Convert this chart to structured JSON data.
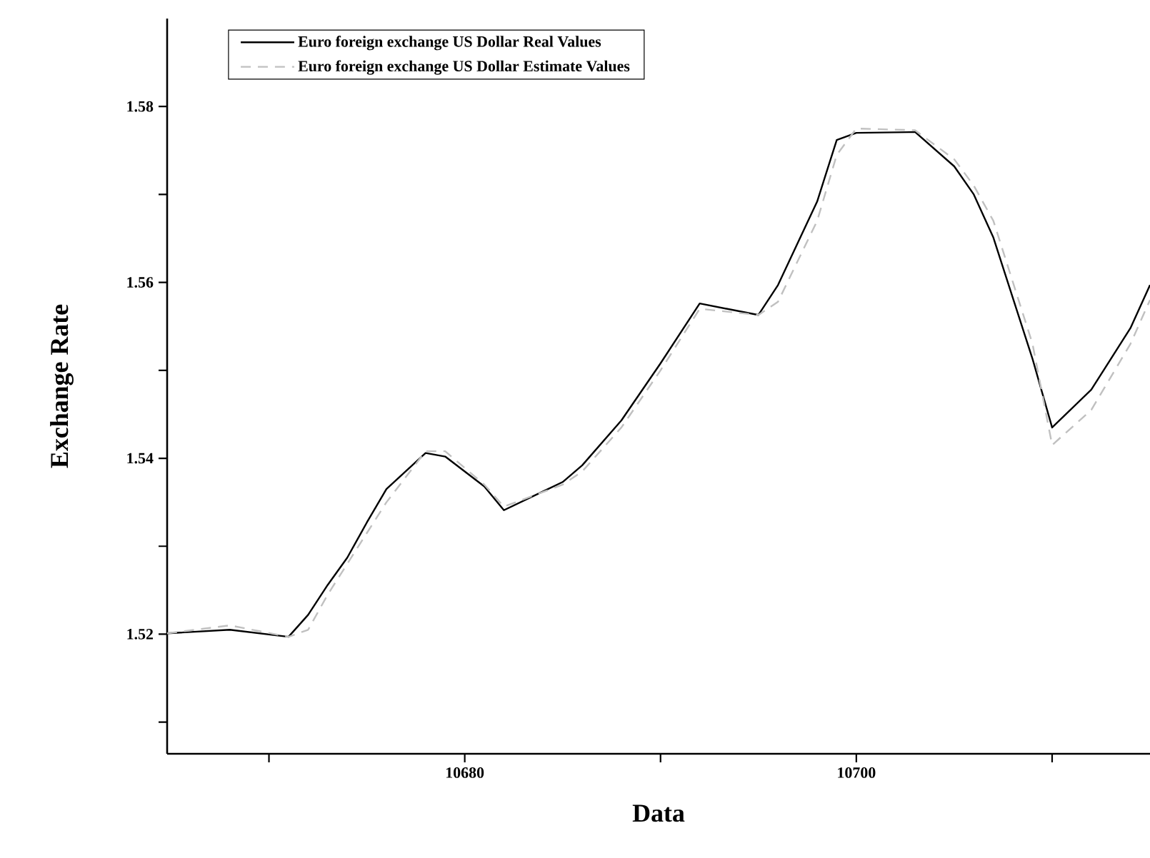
{
  "chart_data": {
    "type": "line",
    "xlabel": "Data",
    "ylabel": "Exchange Rate",
    "xlim": [
      10664.8,
      10715
    ],
    "ylim": [
      1.5064,
      1.59
    ],
    "xticks": [
      {
        "value": 10670,
        "label": null
      },
      10680,
      {
        "value": 10690,
        "label": null
      },
      10700,
      {
        "value": 10710,
        "label": null
      }
    ],
    "yticks": [
      {
        "value": 1.51,
        "label": null
      },
      1.52,
      {
        "value": 1.53,
        "label": null
      },
      1.54,
      {
        "value": 1.55,
        "label": null
      },
      1.56,
      {
        "value": 1.57,
        "label": null
      },
      1.58
    ],
    "legend": "top left",
    "series": [
      {
        "name": "Euro foreign exchange US Dollar Real Values",
        "color": "#000000",
        "line_style": "solid",
        "x": [
          10664.8,
          10668,
          10671,
          10672,
          10673,
          10674,
          10675,
          10676,
          10678,
          10679,
          10681,
          10682,
          10685,
          10686,
          10688,
          10690,
          10692,
          10695,
          10696,
          10698,
          10699,
          10700,
          10703,
          10705,
          10706,
          10707,
          10709,
          10710,
          10712,
          10714,
          10715
        ],
        "values": [
          1.5201,
          1.5205,
          1.5197,
          1.5222,
          1.5256,
          1.5287,
          1.5327,
          1.5365,
          1.5406,
          1.5402,
          1.5368,
          1.5341,
          1.5373,
          1.5392,
          1.5443,
          1.5508,
          1.5576,
          1.5563,
          1.5597,
          1.5692,
          1.5762,
          1.577,
          1.5771,
          1.5732,
          1.57,
          1.5651,
          1.5513,
          1.5435,
          1.5478,
          1.5548,
          1.5597
        ]
      },
      {
        "name": "Euro foreign exchange US Dollar Estimate Values",
        "color": "#c0c0c0",
        "line_style": "dashed",
        "x": [
          10664.8,
          10668,
          10671,
          10672,
          10673,
          10674,
          10675,
          10676,
          10678,
          10679,
          10681,
          10682,
          10685,
          10686,
          10688,
          10690,
          10692,
          10695,
          10696,
          10698,
          10699,
          10700,
          10703,
          10705,
          10706,
          10707,
          10709,
          10710,
          10712,
          10714,
          10715
        ],
        "values": [
          1.5201,
          1.521,
          1.5197,
          1.5205,
          1.5245,
          1.528,
          1.5315,
          1.535,
          1.5408,
          1.5408,
          1.537,
          1.5345,
          1.537,
          1.5385,
          1.5435,
          1.55,
          1.557,
          1.5563,
          1.5578,
          1.567,
          1.5745,
          1.5775,
          1.5773,
          1.574,
          1.571,
          1.567,
          1.553,
          1.5415,
          1.5455,
          1.553,
          1.558
        ]
      }
    ]
  }
}
